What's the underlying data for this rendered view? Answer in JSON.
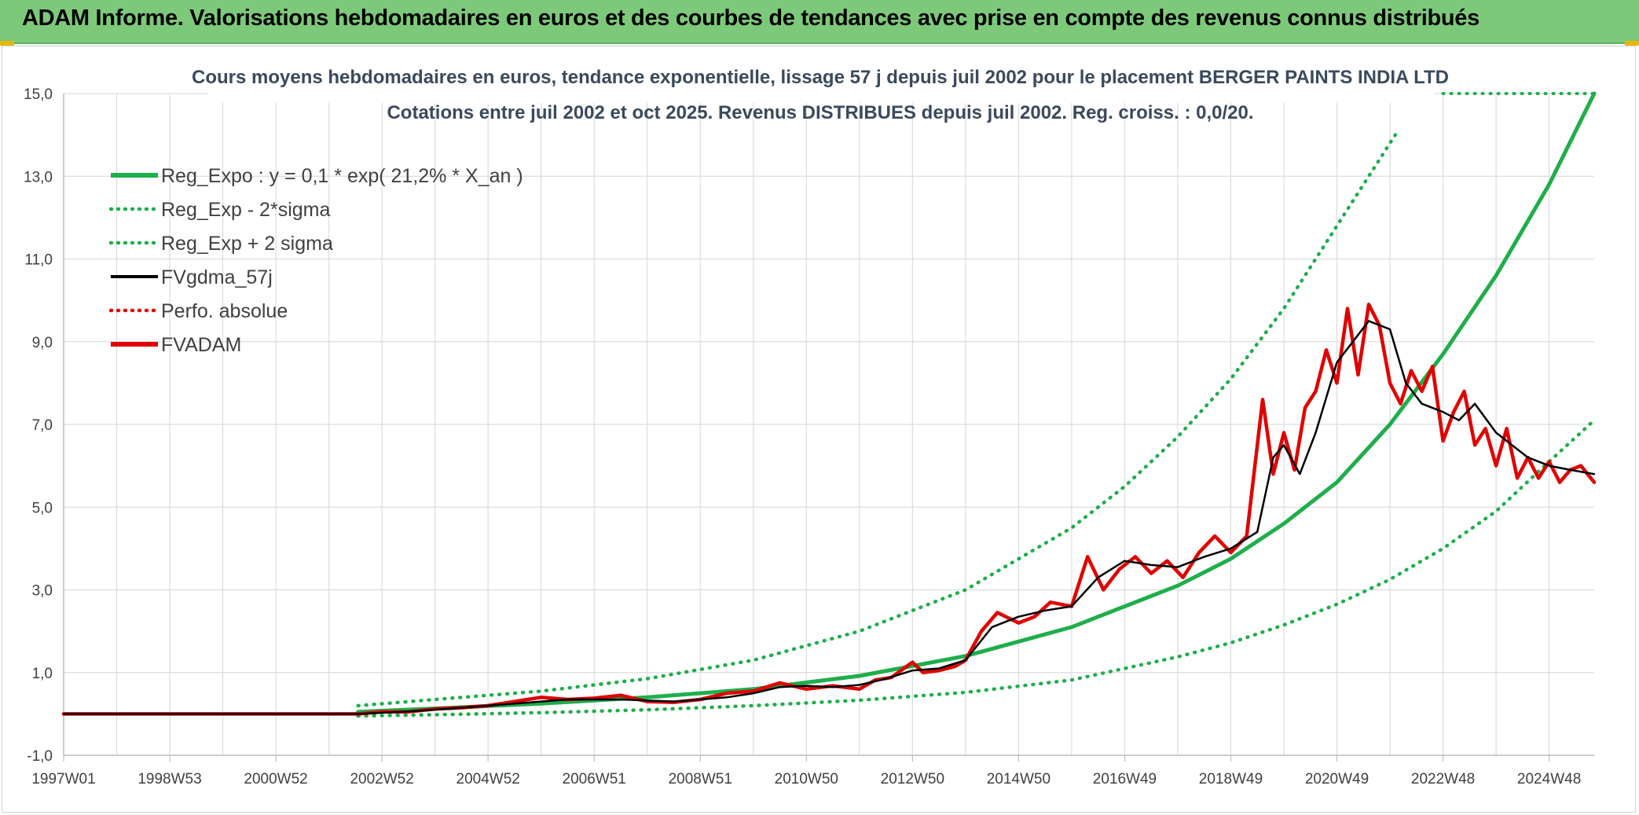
{
  "banner": {
    "title": "ADAM Informe. Valorisations hebdomadaires en euros et des courbes de tendances avec prise en compte des revenus connus distribués"
  },
  "chart_data": {
    "type": "line",
    "title_line1": "Cours moyens hebdomadaires en euros, tendance exponentielle, lissage 57 j depuis juil 2002 pour le placement BERGER PAINTS INDIA LTD",
    "title_line2": "Cotations entre juil 2002 et oct 2025. Revenus DISTRIBUES depuis juil 2002. Reg. croiss. : 0,0/20.",
    "xlabel": "",
    "ylabel": "",
    "x_range": [
      1997.0,
      2025.85
    ],
    "ylim": [
      -1,
      15
    ],
    "y_ticks": [
      "-1,0",
      "1,0",
      "3,0",
      "5,0",
      "7,0",
      "9,0",
      "11,0",
      "13,0",
      "15,0"
    ],
    "x_ticks": [
      {
        "label": "1997W01",
        "year": 1997.0
      },
      {
        "label": "1998W53",
        "year": 1999.0
      },
      {
        "label": "2000W52",
        "year": 2001.0
      },
      {
        "label": "2002W52",
        "year": 2003.0
      },
      {
        "label": "2004W52",
        "year": 2005.0
      },
      {
        "label": "2006W51",
        "year": 2007.0
      },
      {
        "label": "2008W51",
        "year": 2009.0
      },
      {
        "label": "2010W50",
        "year": 2011.0
      },
      {
        "label": "2012W50",
        "year": 2013.0
      },
      {
        "label": "2014W50",
        "year": 2015.0
      },
      {
        "label": "2016W49",
        "year": 2017.0
      },
      {
        "label": "2018W49",
        "year": 2019.0
      },
      {
        "label": "2020W49",
        "year": 2021.0
      },
      {
        "label": "2022W48",
        "year": 2023.0
      },
      {
        "label": "2024W48",
        "year": 2025.0
      }
    ],
    "grid": true,
    "legend_position": "top-left",
    "legend": [
      {
        "name": "Reg_Expo : y = 0,1 * exp( 21,2% *  X_an )",
        "color": "#1fae4c",
        "style": "solid-thick"
      },
      {
        "name": "Reg_Exp - 2*sigma",
        "color": "#1fae4c",
        "style": "dotted"
      },
      {
        "name": "Reg_Exp + 2 sigma",
        "color": "#1fae4c",
        "style": "dotted"
      },
      {
        "name": "FVgdma_57j",
        "color": "#000000",
        "style": "solid"
      },
      {
        "name": "Perfo. absolue",
        "color": "#e00000",
        "style": "dotted"
      },
      {
        "name": "FVADAM",
        "color": "#e00000",
        "style": "solid-thick"
      }
    ],
    "series": [
      {
        "name": "Reg_Expo",
        "color": "#1fae4c",
        "x": [
          2002.55,
          2004.0,
          2006.0,
          2008.0,
          2010.0,
          2012.0,
          2014.0,
          2016.0,
          2018.0,
          2019.0,
          2020.0,
          2021.0,
          2022.0,
          2023.0,
          2024.0,
          2025.0,
          2025.85
        ],
        "y": [
          0.05,
          0.13,
          0.25,
          0.4,
          0.6,
          0.92,
          1.4,
          2.1,
          3.1,
          3.75,
          4.6,
          5.6,
          7.0,
          8.7,
          10.6,
          12.8,
          15.0
        ]
      },
      {
        "name": "Reg_Exp - 2*sigma",
        "color": "#1fae4c",
        "x": [
          2002.55,
          2004.0,
          2006.0,
          2008.0,
          2010.0,
          2012.0,
          2014.0,
          2016.0,
          2018.0,
          2019.0,
          2020.0,
          2021.0,
          2022.0,
          2023.0,
          2024.0,
          2025.0,
          2025.85
        ],
        "y": [
          -0.05,
          -0.02,
          0.03,
          0.1,
          0.2,
          0.33,
          0.52,
          0.82,
          1.38,
          1.72,
          2.15,
          2.65,
          3.25,
          4.0,
          4.9,
          6.1,
          7.1
        ]
      },
      {
        "name": "Reg_Exp + 2 sigma",
        "color": "#1fae4c",
        "x": [
          2002.55,
          2004.0,
          2006.0,
          2008.0,
          2010.0,
          2012.0,
          2014.0,
          2016.0,
          2017.0,
          2018.0,
          2019.0,
          2020.0,
          2021.0,
          2021.5,
          2022.1
        ],
        "y": [
          0.2,
          0.35,
          0.55,
          0.85,
          1.3,
          2.0,
          3.0,
          4.5,
          5.5,
          6.7,
          8.1,
          9.8,
          11.8,
          12.8,
          14.0
        ]
      },
      {
        "name": "Reg_Exp + 2 sigma (cap)",
        "color": "#1fae4c",
        "x": [
          2023.0,
          2025.85
        ],
        "y": [
          15.0,
          15.0
        ]
      },
      {
        "name": "FVgdma_57j",
        "color": "#000000",
        "x": [
          1997.0,
          2002.55,
          2003.5,
          2004.5,
          2005.5,
          2006.5,
          2007.5,
          2008.5,
          2009.5,
          2010.0,
          2010.5,
          2011.0,
          2011.5,
          2012.0,
          2012.5,
          2013.0,
          2013.5,
          2014.0,
          2014.5,
          2015.0,
          2015.5,
          2016.0,
          2016.5,
          2017.0,
          2017.5,
          2018.0,
          2018.5,
          2019.0,
          2019.5,
          2019.8,
          2020.0,
          2020.3,
          2020.6,
          2021.0,
          2021.3,
          2021.6,
          2022.0,
          2022.3,
          2022.6,
          2023.0,
          2023.3,
          2023.6,
          2024.0,
          2024.3,
          2024.6,
          2025.0,
          2025.4,
          2025.85
        ],
        "y": [
          0.0,
          0.0,
          0.06,
          0.15,
          0.25,
          0.35,
          0.35,
          0.3,
          0.4,
          0.5,
          0.65,
          0.68,
          0.65,
          0.7,
          0.85,
          1.05,
          1.1,
          1.3,
          2.1,
          2.35,
          2.5,
          2.6,
          3.3,
          3.7,
          3.6,
          3.55,
          3.8,
          4.0,
          4.4,
          6.2,
          6.5,
          5.8,
          6.8,
          8.5,
          9.0,
          9.5,
          9.3,
          8.0,
          7.5,
          7.3,
          7.1,
          7.5,
          6.8,
          6.5,
          6.2,
          6.0,
          5.9,
          5.8
        ]
      },
      {
        "name": "FVADAM",
        "color": "#e00000",
        "x": [
          1997.0,
          2002.55,
          2003.0,
          2003.5,
          2004.0,
          2004.5,
          2005.0,
          2005.5,
          2006.0,
          2006.5,
          2007.0,
          2007.5,
          2008.0,
          2008.5,
          2009.0,
          2009.5,
          2010.0,
          2010.5,
          2011.0,
          2011.5,
          2012.0,
          2012.3,
          2012.6,
          2013.0,
          2013.2,
          2013.5,
          2013.8,
          2014.0,
          2014.3,
          2014.6,
          2015.0,
          2015.3,
          2015.6,
          2016.0,
          2016.3,
          2016.6,
          2016.9,
          2017.2,
          2017.5,
          2017.8,
          2018.1,
          2018.4,
          2018.7,
          2019.0,
          2019.3,
          2019.6,
          2019.8,
          2020.0,
          2020.2,
          2020.4,
          2020.6,
          2020.8,
          2021.0,
          2021.2,
          2021.4,
          2021.6,
          2021.8,
          2022.0,
          2022.2,
          2022.4,
          2022.6,
          2022.8,
          2023.0,
          2023.2,
          2023.4,
          2023.6,
          2023.8,
          2024.0,
          2024.2,
          2024.4,
          2024.6,
          2024.8,
          2025.0,
          2025.2,
          2025.4,
          2025.6,
          2025.85
        ],
        "y": [
          0.0,
          0.0,
          0.05,
          0.05,
          0.12,
          0.15,
          0.2,
          0.3,
          0.4,
          0.35,
          0.38,
          0.45,
          0.3,
          0.28,
          0.35,
          0.5,
          0.55,
          0.75,
          0.6,
          0.68,
          0.6,
          0.82,
          0.88,
          1.25,
          1.0,
          1.05,
          1.15,
          1.3,
          2.0,
          2.45,
          2.2,
          2.35,
          2.7,
          2.6,
          3.8,
          3.0,
          3.5,
          3.8,
          3.4,
          3.7,
          3.3,
          3.9,
          4.3,
          3.9,
          4.3,
          7.6,
          5.8,
          6.8,
          5.9,
          7.4,
          7.8,
          8.8,
          8.0,
          9.8,
          8.2,
          9.9,
          9.4,
          8.0,
          7.5,
          8.3,
          7.8,
          8.4,
          6.6,
          7.3,
          7.8,
          6.5,
          6.9,
          6.0,
          6.9,
          5.7,
          6.2,
          5.7,
          6.1,
          5.6,
          5.9,
          6.0,
          5.6
        ]
      }
    ]
  }
}
